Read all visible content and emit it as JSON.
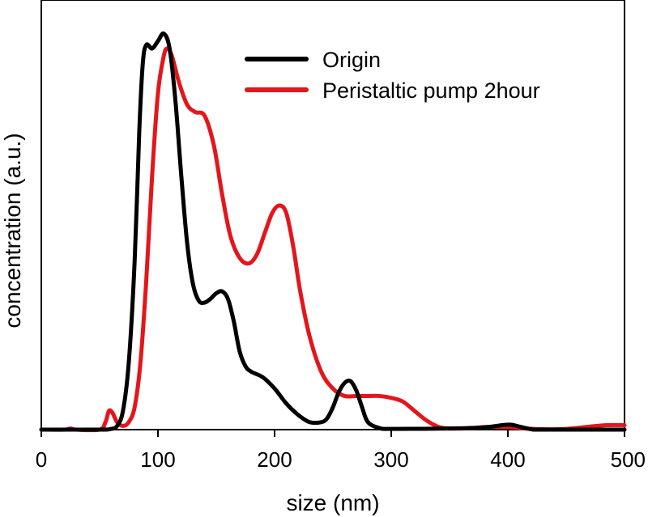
{
  "chart_data": {
    "type": "line",
    "title": "",
    "xlabel": "size (nm)",
    "ylabel": "concentration (a.u.)",
    "xlim": [
      0,
      500
    ],
    "ylim": [
      0,
      1.15
    ],
    "xticks": [
      "0",
      "100",
      "200",
      "300",
      "400",
      "500"
    ],
    "legend_position": "top-right",
    "grid": false,
    "series": [
      {
        "name": "Origin",
        "color": "#000000",
        "points": [
          [
            0,
            0
          ],
          [
            50,
            0
          ],
          [
            60,
            0.002
          ],
          [
            65,
            0.01
          ],
          [
            70,
            0.05
          ],
          [
            75,
            0.18
          ],
          [
            80,
            0.45
          ],
          [
            84,
            0.8
          ],
          [
            87,
            0.98
          ],
          [
            90,
            1.03
          ],
          [
            95,
            1.02
          ],
          [
            100,
            1.04
          ],
          [
            105,
            1.06
          ],
          [
            110,
            1.02
          ],
          [
            115,
            0.88
          ],
          [
            120,
            0.68
          ],
          [
            125,
            0.5
          ],
          [
            130,
            0.39
          ],
          [
            135,
            0.345
          ],
          [
            140,
            0.34
          ],
          [
            145,
            0.35
          ],
          [
            150,
            0.365
          ],
          [
            155,
            0.37
          ],
          [
            160,
            0.35
          ],
          [
            165,
            0.29
          ],
          [
            170,
            0.21
          ],
          [
            175,
            0.17
          ],
          [
            180,
            0.155
          ],
          [
            190,
            0.14
          ],
          [
            200,
            0.11
          ],
          [
            210,
            0.07
          ],
          [
            220,
            0.04
          ],
          [
            230,
            0.02
          ],
          [
            240,
            0.02
          ],
          [
            245,
            0.03
          ],
          [
            250,
            0.06
          ],
          [
            255,
            0.1
          ],
          [
            260,
            0.125
          ],
          [
            265,
            0.13
          ],
          [
            270,
            0.105
          ],
          [
            275,
            0.06
          ],
          [
            280,
            0.02
          ],
          [
            290,
            0.004
          ],
          [
            300,
            0.002
          ],
          [
            350,
            0.003
          ],
          [
            380,
            0.006
          ],
          [
            395,
            0.012
          ],
          [
            403,
            0.013
          ],
          [
            410,
            0.008
          ],
          [
            420,
            0.001
          ],
          [
            430,
            0
          ],
          [
            500,
            0
          ]
        ]
      },
      {
        "name": "Peristaltic pump 2hour",
        "color": "#e3161c",
        "points": [
          [
            0,
            0
          ],
          [
            20,
            0
          ],
          [
            25,
            0.003
          ],
          [
            30,
            0
          ],
          [
            50,
            0
          ],
          [
            55,
            0.02
          ],
          [
            58,
            0.05
          ],
          [
            61,
            0.045
          ],
          [
            65,
            0.02
          ],
          [
            70,
            0.01
          ],
          [
            75,
            0.02
          ],
          [
            80,
            0.06
          ],
          [
            85,
            0.18
          ],
          [
            90,
            0.4
          ],
          [
            95,
            0.68
          ],
          [
            100,
            0.9
          ],
          [
            105,
            1.0
          ],
          [
            108,
            1.02
          ],
          [
            112,
            1.0
          ],
          [
            118,
            0.93
          ],
          [
            125,
            0.87
          ],
          [
            132,
            0.85
          ],
          [
            140,
            0.84
          ],
          [
            148,
            0.76
          ],
          [
            155,
            0.63
          ],
          [
            162,
            0.52
          ],
          [
            170,
            0.46
          ],
          [
            178,
            0.445
          ],
          [
            185,
            0.47
          ],
          [
            192,
            0.53
          ],
          [
            198,
            0.58
          ],
          [
            204,
            0.6
          ],
          [
            210,
            0.58
          ],
          [
            216,
            0.49
          ],
          [
            222,
            0.37
          ],
          [
            230,
            0.25
          ],
          [
            240,
            0.155
          ],
          [
            250,
            0.11
          ],
          [
            260,
            0.09
          ],
          [
            270,
            0.09
          ],
          [
            280,
            0.09
          ],
          [
            290,
            0.09
          ],
          [
            300,
            0.085
          ],
          [
            310,
            0.075
          ],
          [
            320,
            0.05
          ],
          [
            330,
            0.025
          ],
          [
            340,
            0.008
          ],
          [
            350,
            0.003
          ],
          [
            370,
            0.004
          ],
          [
            380,
            0.007
          ],
          [
            400,
            0.007
          ],
          [
            415,
            0.003
          ],
          [
            430,
            0.001
          ],
          [
            450,
            0.002
          ],
          [
            470,
            0.008
          ],
          [
            485,
            0.012
          ],
          [
            500,
            0.012
          ]
        ]
      }
    ]
  }
}
